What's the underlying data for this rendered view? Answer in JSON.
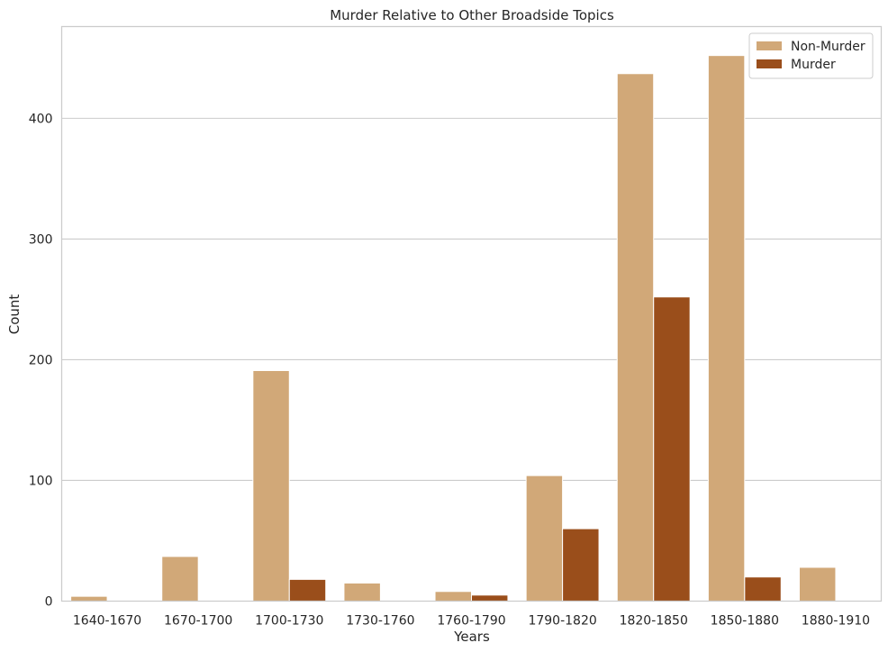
{
  "chart_data": {
    "type": "bar",
    "title": "Murder Relative to Other Broadside Topics",
    "xlabel": "Years",
    "ylabel": "Count",
    "categories": [
      "1640-1670",
      "1670-1700",
      "1700-1730",
      "1730-1760",
      "1760-1790",
      "1790-1820",
      "1820-1850",
      "1850-1880",
      "1880-1910"
    ],
    "series": [
      {
        "name": "Non-Murder",
        "color": "#d1a878",
        "values": [
          4,
          37,
          191,
          15,
          8,
          104,
          437,
          452,
          28
        ]
      },
      {
        "name": "Murder",
        "color": "#9a4e1b",
        "values": [
          0,
          0,
          18,
          0,
          5,
          60,
          252,
          20,
          0
        ]
      }
    ],
    "ylim": [
      0,
      476
    ],
    "yticks": [
      0,
      100,
      200,
      300,
      400
    ],
    "grid": true,
    "legend": "top-right"
  }
}
